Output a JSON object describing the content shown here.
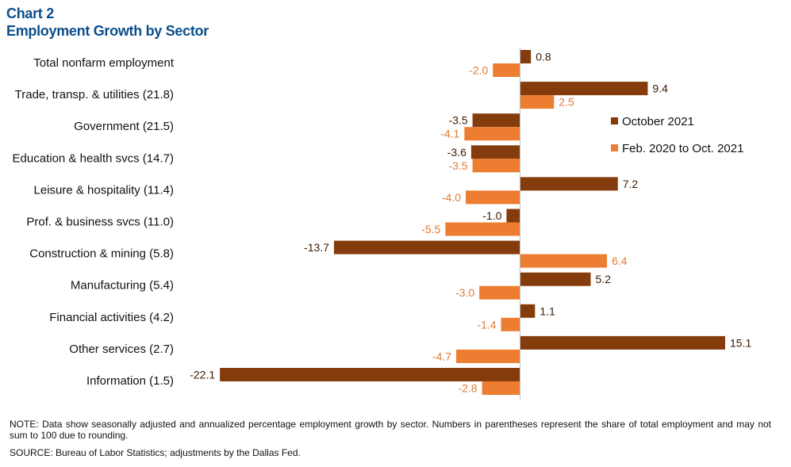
{
  "chart_data": {
    "type": "bar",
    "orientation": "horizontal",
    "title": "Chart 2",
    "subtitle": "Employment Growth by Sector",
    "categories": [
      "Total nonfarm employment",
      "Trade, transp. & utilities (21.8)",
      "Government (21.5)",
      "Education & health svcs (14.7)",
      "Leisure & hospitality (11.4)",
      "Prof. & business svcs (11.0)",
      "Construction & mining (5.8)",
      "Manufacturing (5.4)",
      "Financial activities (4.2)",
      "Other services (2.7)",
      "Information (1.5)"
    ],
    "series": [
      {
        "name": "October 2021",
        "color": "#843c0c",
        "values": [
          0.8,
          9.4,
          -3.5,
          -3.6,
          7.2,
          -1.0,
          -13.7,
          5.2,
          1.1,
          15.1,
          -22.1
        ],
        "labels": [
          "0.8",
          "9.4",
          "-3.5",
          "-3.6",
          "7.2",
          "-1.0",
          "-13.7",
          "5.2",
          "1.1",
          "15.1",
          "-22.1"
        ],
        "label_color": "#3a1a05"
      },
      {
        "name": "Feb. 2020 to Oct. 2021",
        "color": "#ed7d31",
        "values": [
          -2.0,
          2.5,
          -4.1,
          -3.5,
          -4.0,
          -5.5,
          6.4,
          -3.0,
          -1.4,
          -4.7,
          -2.8
        ],
        "labels": [
          "-2.0",
          "2.5",
          "-4.1",
          "-3.5",
          "-4.0",
          "-5.5",
          "6.4",
          "-3.0",
          "-1.4",
          "-4.7",
          "-2.8"
        ],
        "label_color": "#e07b33"
      }
    ],
    "xlim": [
      -22.1,
      15.1
    ],
    "axis_line_color": "#bfbfbf",
    "legend_position": "right"
  },
  "footer": {
    "note": "NOTE: Data show seasonally adjusted and annualized percentage employment growth by sector. Numbers in parentheses represent the share of total employment and may not sum to 100 due to rounding.",
    "source": "SOURCE: Bureau of Labor Statistics; adjustments by the Dallas Fed."
  }
}
